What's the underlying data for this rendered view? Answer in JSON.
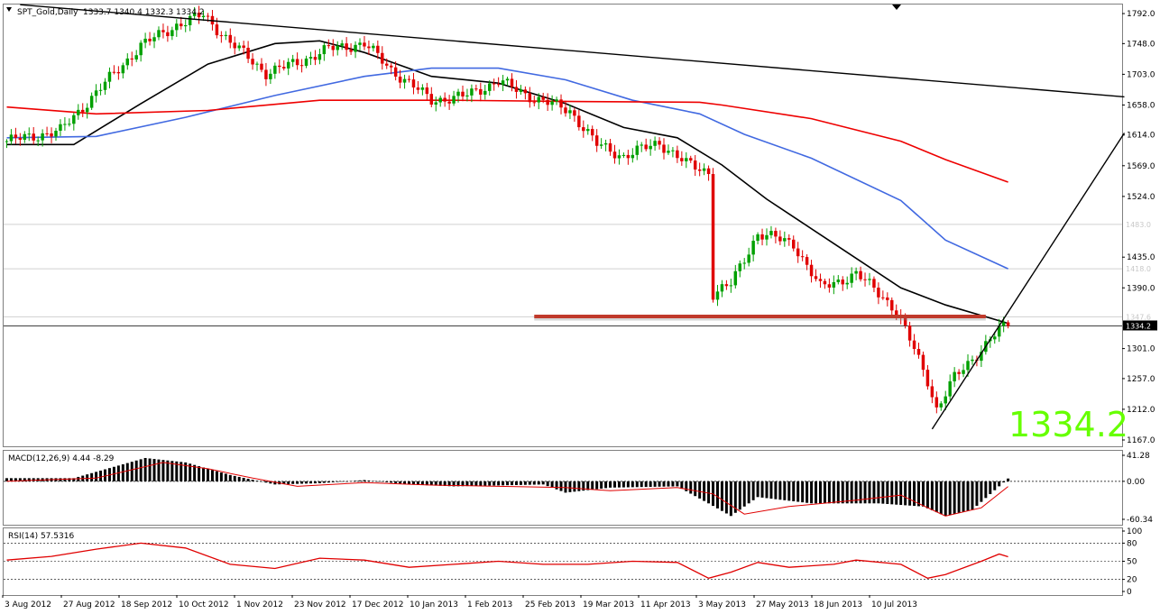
{
  "colors": {
    "bull": "#00a000",
    "bear": "#e00000",
    "sma_black": "#000000",
    "sma_blue": "#4169e1",
    "sma_red": "#ee0000",
    "resistance": "#c0392b",
    "big_price": "#66ff00"
  },
  "chart_data": [
    {
      "type": "candlestick",
      "title": "SPT_Gold,Daily",
      "ohlc_header": "1333.7 1340.4 1332.3 1334.2",
      "last_price": 1334.2,
      "big_price_label": "1334.2",
      "ylim": [
        1167,
        1800
      ],
      "y_ticks": [
        "1792.0",
        "1748.0",
        "1703.0",
        "1658.0",
        "1614.0",
        "1569.0",
        "1524.0",
        "1435.0",
        "1390.0",
        "1301.0",
        "1257.0",
        "1212.0",
        "1167.0"
      ],
      "level_lines": [
        {
          "value": 1483.0,
          "label": "1483.0"
        },
        {
          "value": 1418.0,
          "label": "1418.0"
        },
        {
          "value": 1347.6,
          "label": "1347.6"
        }
      ],
      "current_price_label": "1334.2",
      "resistance_level": 1348,
      "x_labels": [
        "3 Aug 2012",
        "27 Aug 2012",
        "18 Sep 2012",
        "10 Oct 2012",
        "1 Nov 2012",
        "23 Nov 2012",
        "17 Dec 2012",
        "10 Jan 2013",
        "1 Feb 2013",
        "25 Feb 2013",
        "19 Mar 2013",
        "11 Apr 2013",
        "3 May 2013",
        "27 May 2013",
        "18 Jun 2013",
        "10 Jul 2013"
      ],
      "bars_total": 250,
      "last_bar_index": 224,
      "price_path": [
        [
          0,
          1605
        ],
        [
          12,
          1620
        ],
        [
          22,
          1690
        ],
        [
          30,
          1745
        ],
        [
          38,
          1775
        ],
        [
          44,
          1790
        ],
        [
          50,
          1750
        ],
        [
          58,
          1705
        ],
        [
          65,
          1720
        ],
        [
          72,
          1740
        ],
        [
          80,
          1748
        ],
        [
          86,
          1710
        ],
        [
          95,
          1665
        ],
        [
          102,
          1670
        ],
        [
          110,
          1693
        ],
        [
          118,
          1668
        ],
        [
          126,
          1650
        ],
        [
          132,
          1600
        ],
        [
          138,
          1583
        ],
        [
          146,
          1603
        ],
        [
          152,
          1572
        ],
        [
          157,
          1560
        ],
        [
          158,
          1382
        ],
        [
          162,
          1395
        ],
        [
          168,
          1470
        ],
        [
          176,
          1455
        ],
        [
          182,
          1390
        ],
        [
          190,
          1410
        ],
        [
          196,
          1378
        ],
        [
          199,
          1355
        ],
        [
          203,
          1300
        ],
        [
          206,
          1255
        ],
        [
          208,
          1212
        ],
        [
          212,
          1258
        ],
        [
          218,
          1300
        ],
        [
          222,
          1328
        ],
        [
          224,
          1334.2
        ]
      ],
      "series": [
        {
          "name": "SMA black",
          "color": "#000000",
          "points": [
            [
              0,
              1600
            ],
            [
              15,
              1600
            ],
            [
              30,
              1660
            ],
            [
              45,
              1718
            ],
            [
              60,
              1748
            ],
            [
              70,
              1752
            ],
            [
              80,
              1735
            ],
            [
              95,
              1700
            ],
            [
              110,
              1690
            ],
            [
              125,
              1660
            ],
            [
              138,
              1625
            ],
            [
              150,
              1610
            ],
            [
              160,
              1570
            ],
            [
              170,
              1520
            ],
            [
              185,
              1455
            ],
            [
              200,
              1390
            ],
            [
              210,
              1365
            ],
            [
              224,
              1338
            ]
          ]
        },
        {
          "name": "SMA blue",
          "color": "#4169e1",
          "points": [
            [
              0,
              1610
            ],
            [
              20,
              1612
            ],
            [
              40,
              1640
            ],
            [
              60,
              1672
            ],
            [
              80,
              1700
            ],
            [
              95,
              1712
            ],
            [
              110,
              1712
            ],
            [
              125,
              1695
            ],
            [
              140,
              1665
            ],
            [
              155,
              1645
            ],
            [
              165,
              1615
            ],
            [
              180,
              1580
            ],
            [
              200,
              1518
            ],
            [
              210,
              1460
            ],
            [
              224,
              1418
            ]
          ]
        },
        {
          "name": "SMA red",
          "color": "#ee0000",
          "points": [
            [
              0,
              1655
            ],
            [
              20,
              1645
            ],
            [
              45,
              1650
            ],
            [
              70,
              1665
            ],
            [
              100,
              1665
            ],
            [
              130,
              1663
            ],
            [
              155,
              1662
            ],
            [
              160,
              1658
            ],
            [
              180,
              1638
            ],
            [
              200,
              1605
            ],
            [
              210,
              1578
            ],
            [
              224,
              1545
            ]
          ]
        }
      ],
      "trend_lines": [
        {
          "points": [
            [
              3,
              1805
            ],
            [
              250,
              1670
            ]
          ]
        },
        {
          "points": [
            [
              207,
              1183
            ],
            [
              250,
              1617
            ]
          ]
        }
      ]
    },
    {
      "type": "bar",
      "title": "MACD(12,26,9) 4.44 -8.29",
      "ylim": [
        -60.34,
        41.28
      ],
      "y_ticks": [
        "41.28",
        "0.00",
        "-60.34"
      ],
      "histogram_path": [
        [
          0,
          5
        ],
        [
          15,
          5
        ],
        [
          25,
          25
        ],
        [
          31,
          37
        ],
        [
          40,
          30
        ],
        [
          50,
          10
        ],
        [
          60,
          -5
        ],
        [
          70,
          -3
        ],
        [
          80,
          2
        ],
        [
          90,
          -5
        ],
        [
          100,
          -8
        ],
        [
          120,
          -5
        ],
        [
          125,
          -18
        ],
        [
          135,
          -10
        ],
        [
          150,
          -8
        ],
        [
          157,
          -35
        ],
        [
          162,
          -55
        ],
        [
          168,
          -25
        ],
        [
          180,
          -35
        ],
        [
          195,
          -35
        ],
        [
          205,
          -40
        ],
        [
          210,
          -55
        ],
        [
          216,
          -45
        ],
        [
          224,
          4.44
        ]
      ],
      "signal_path": [
        [
          0,
          0
        ],
        [
          20,
          5
        ],
        [
          35,
          30
        ],
        [
          45,
          20
        ],
        [
          55,
          5
        ],
        [
          65,
          -8
        ],
        [
          80,
          -2
        ],
        [
          95,
          -6
        ],
        [
          110,
          -8
        ],
        [
          125,
          -10
        ],
        [
          135,
          -15
        ],
        [
          150,
          -10
        ],
        [
          158,
          -20
        ],
        [
          165,
          -52
        ],
        [
          175,
          -40
        ],
        [
          190,
          -30
        ],
        [
          200,
          -22
        ],
        [
          210,
          -55
        ],
        [
          218,
          -42
        ],
        [
          224,
          -8.29
        ]
      ]
    },
    {
      "type": "line",
      "title": "RSI(14) 57.5316",
      "ylim": [
        0,
        100
      ],
      "y_ticks": [
        "100",
        "80",
        "50",
        "20",
        "0"
      ],
      "levels": [
        80,
        50,
        20
      ],
      "points": [
        [
          0,
          52
        ],
        [
          10,
          58
        ],
        [
          20,
          70
        ],
        [
          30,
          80
        ],
        [
          40,
          72
        ],
        [
          50,
          45
        ],
        [
          60,
          38
        ],
        [
          70,
          55
        ],
        [
          80,
          52
        ],
        [
          90,
          40
        ],
        [
          100,
          45
        ],
        [
          110,
          50
        ],
        [
          120,
          45
        ],
        [
          130,
          45
        ],
        [
          140,
          50
        ],
        [
          150,
          48
        ],
        [
          157,
          22
        ],
        [
          162,
          32
        ],
        [
          168,
          48
        ],
        [
          175,
          40
        ],
        [
          185,
          45
        ],
        [
          190,
          52
        ],
        [
          200,
          45
        ],
        [
          206,
          22
        ],
        [
          210,
          28
        ],
        [
          218,
          50
        ],
        [
          222,
          62
        ],
        [
          224,
          57.53
        ]
      ]
    }
  ]
}
